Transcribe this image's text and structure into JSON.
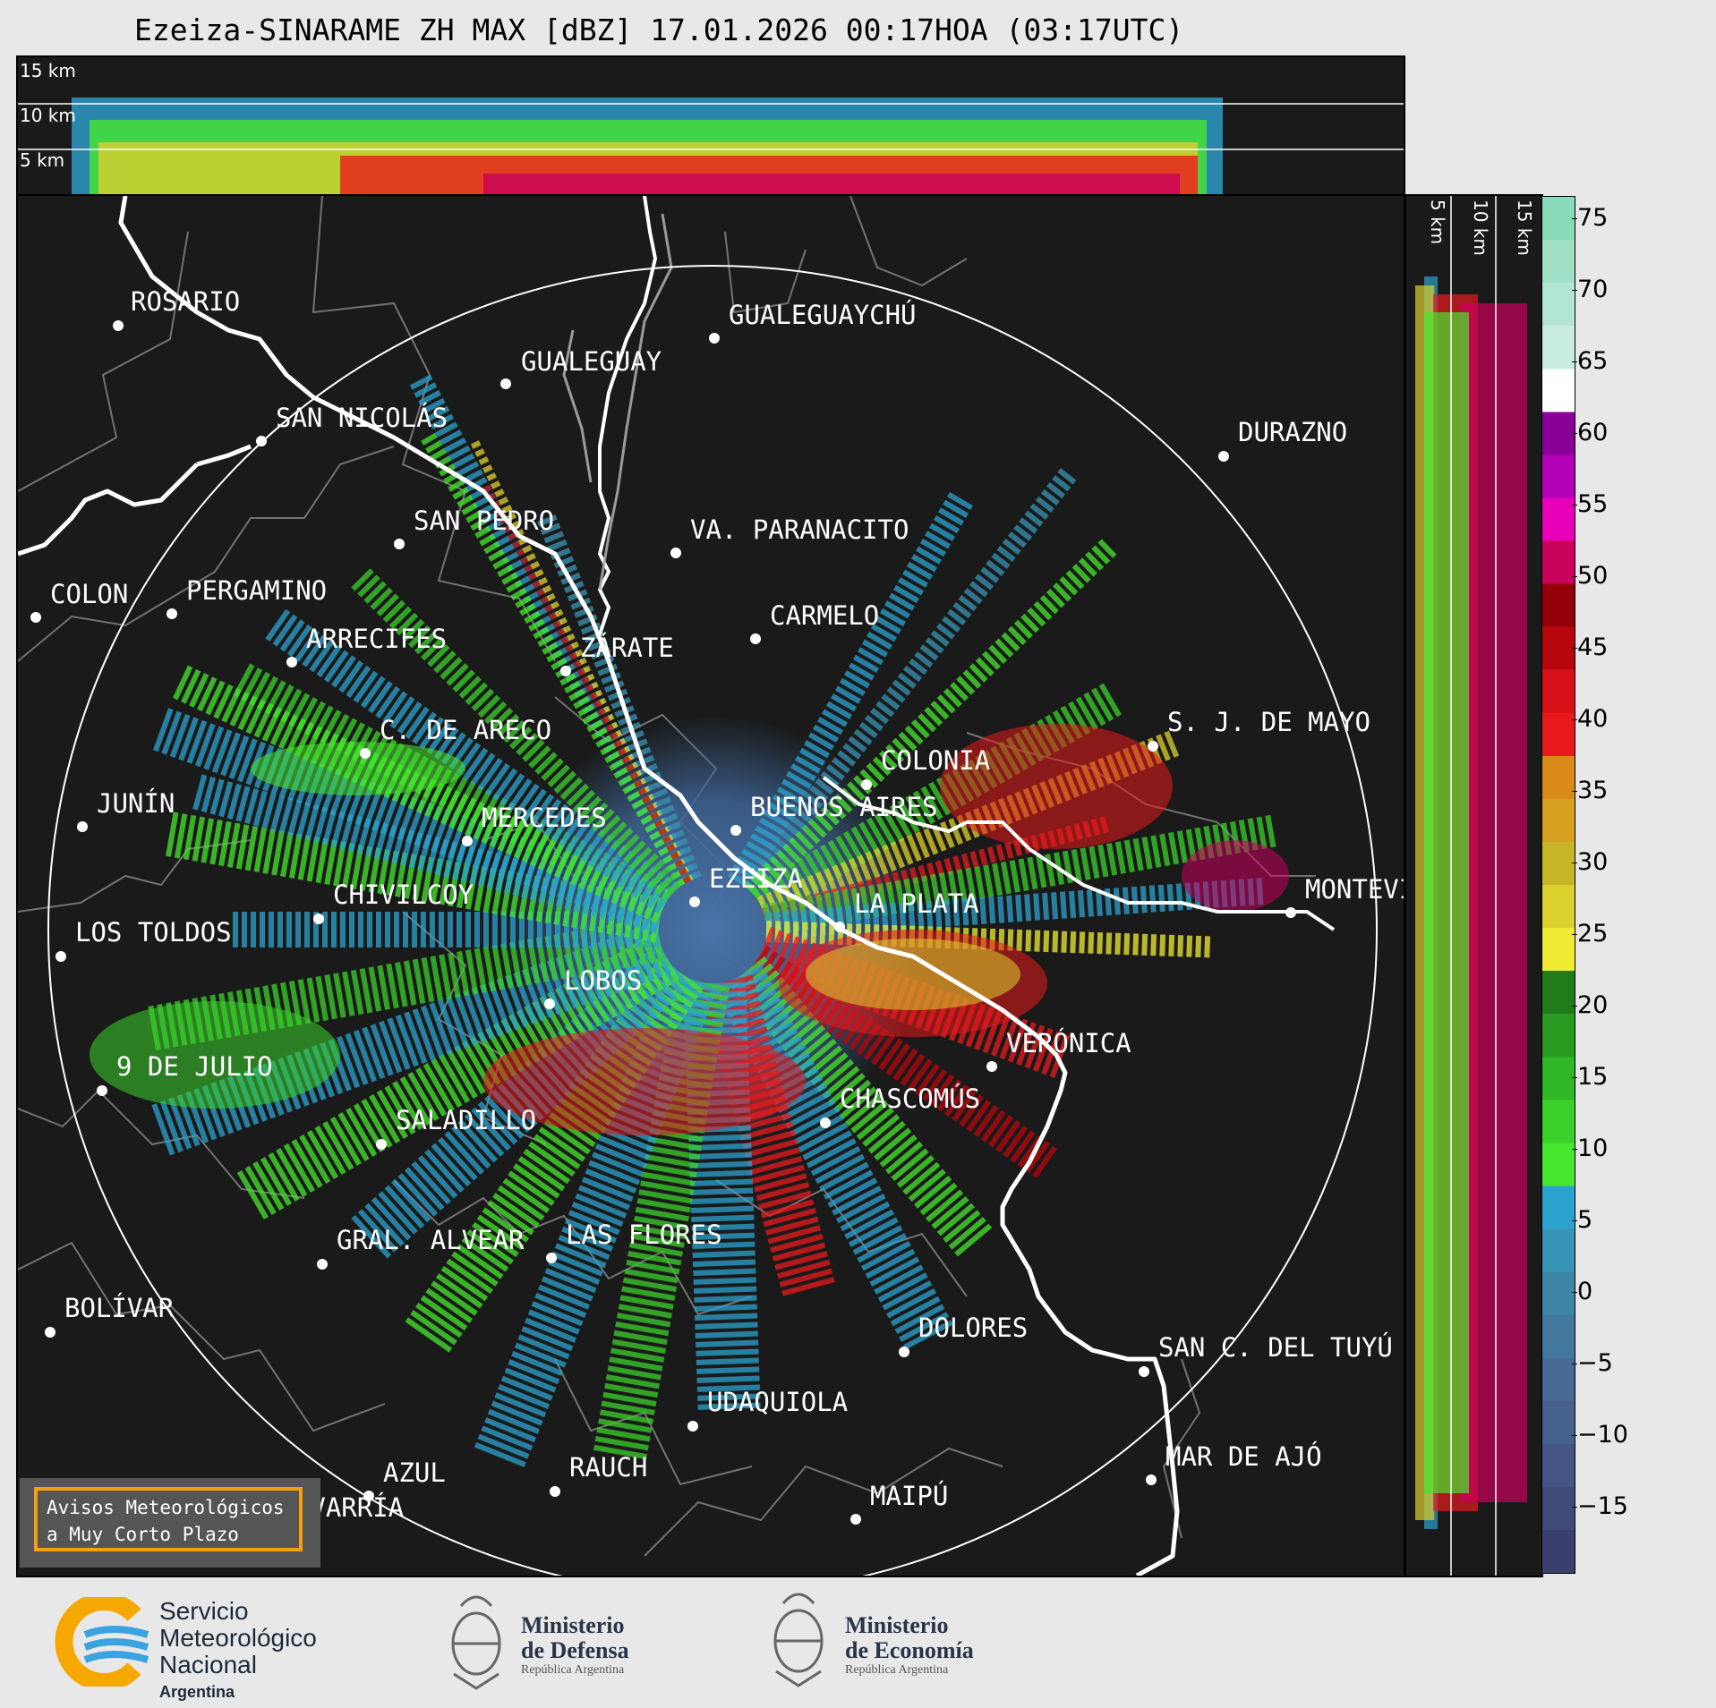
{
  "header": {
    "title": "Ezeiza-SINARAME ZH MAX [dBZ] 17.01.2026 00:17HOA (03:17UTC)"
  },
  "height_labels": {
    "top": [
      "15 km",
      "10 km",
      "5 km"
    ],
    "side": [
      "5 km",
      "10 km",
      "15 km"
    ]
  },
  "cities": [
    {
      "name": "ROSARIO"
    },
    {
      "name": "GUALEGUAYCHÚ"
    },
    {
      "name": "GUALEGUAY"
    },
    {
      "name": "SAN NICOLÁS"
    },
    {
      "name": "DURAZNO"
    },
    {
      "name": "SAN PEDRO"
    },
    {
      "name": "VA. PARANACITO"
    },
    {
      "name": "COLON"
    },
    {
      "name": "PERGAMINO"
    },
    {
      "name": "CARMELO"
    },
    {
      "name": "ARRECIFES"
    },
    {
      "name": "ZÁRATE"
    },
    {
      "name": "S. J. DE MAYO"
    },
    {
      "name": "C. DE ARECO"
    },
    {
      "name": "COLONIA"
    },
    {
      "name": "JUNÍN"
    },
    {
      "name": "BUENOS AIRES"
    },
    {
      "name": "MERCEDES"
    },
    {
      "name": "EZEIZA"
    },
    {
      "name": "MONTEVIDEO"
    },
    {
      "name": "CHIVILCOY"
    },
    {
      "name": "LA PLATA"
    },
    {
      "name": "LOS TOLDOS"
    },
    {
      "name": "LOBOS"
    },
    {
      "name": "VERÓNICA"
    },
    {
      "name": "9 DE JULIO"
    },
    {
      "name": "CHASCOMÚS"
    },
    {
      "name": "SALADILLO"
    },
    {
      "name": "GRAL. ALVEAR"
    },
    {
      "name": "LAS FLORES"
    },
    {
      "name": "BOLÍVAR"
    },
    {
      "name": "DOLORES"
    },
    {
      "name": "SAN C. DEL TUYÚ"
    },
    {
      "name": "UDAQUIOLA"
    },
    {
      "name": "MAR DE AJÓ"
    },
    {
      "name": "AZUL"
    },
    {
      "name": "RAUCH"
    },
    {
      "name": "OLAVARRÍA"
    },
    {
      "name": "MAIPÚ"
    }
  ],
  "colorbar": {
    "ticks": [
      "75",
      "70",
      "65",
      "60",
      "55",
      "50",
      "45",
      "40",
      "35",
      "30",
      "25",
      "20",
      "15",
      "10",
      "5",
      "0",
      "−5",
      "−10",
      "−15"
    ],
    "colors": [
      "#3b3f6e",
      "#414b7a",
      "#455684",
      "#46618c",
      "#466c95",
      "#43789e",
      "#3d86a8",
      "#3894b5",
      "#2ca3cf",
      "#47e62f",
      "#3bd12a",
      "#30b725",
      "#279b1f",
      "#1f7c19",
      "#f0ec34",
      "#dcd02c",
      "#c9b628",
      "#d7a020",
      "#d98a18",
      "#e8191c",
      "#d61117",
      "#b7060d",
      "#93000a",
      "#c9005c",
      "#e800b8",
      "#b400b6",
      "#8a0096",
      "#ffffff",
      "#c8ece0",
      "#b3e6d2",
      "#9fe0c7",
      "#89d9bb"
    ]
  },
  "badge": {
    "line1": "Avisos Meteorológicos",
    "line2": "a Muy Corto Plazo"
  },
  "logos": {
    "smn": {
      "line1": "Servicio",
      "line2": "Meteorológico",
      "line3": "Nacional",
      "line4": "Argentina",
      "colors": [
        "#f6a800",
        "#3aa3e0"
      ]
    },
    "defensa": {
      "line1": "Ministerio",
      "line2": "de Defensa",
      "line3": "República Argentina"
    },
    "economia": {
      "line1": "Ministerio",
      "line2": "de Economía",
      "line3": "República Argentina"
    }
  }
}
